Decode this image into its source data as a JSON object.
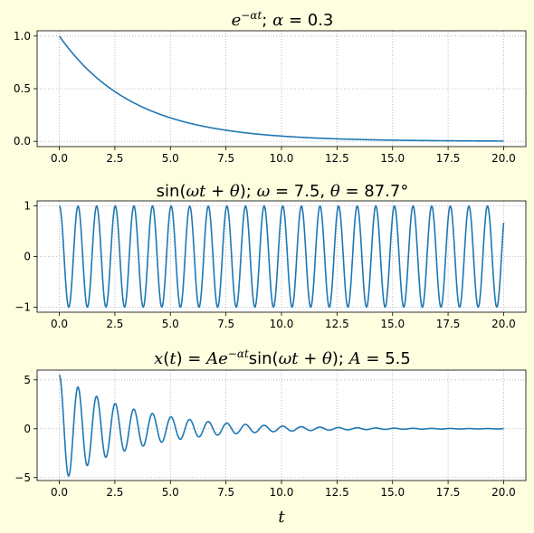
{
  "figure": {
    "background": "#ffffe0",
    "line_color": "#1f77b4",
    "xlabel": "t"
  },
  "chart_data": [
    {
      "type": "line",
      "title": "e^{−αt};   α = 0.3",
      "function": "exp",
      "params": {
        "alpha": 0.3
      },
      "x": {
        "start": 0,
        "end": 20,
        "samples": 1000
      },
      "xlim": [
        -1,
        21
      ],
      "ylim": [
        -0.05,
        1.05
      ],
      "xticks": [
        0,
        2.5,
        5,
        7.5,
        10,
        12.5,
        15,
        17.5,
        20
      ],
      "xtick_labels": [
        "0.0",
        "2.5",
        "5.0",
        "7.5",
        "10.0",
        "12.5",
        "15.0",
        "17.5",
        "20.0"
      ],
      "yticks": [
        0,
        0.5,
        1
      ],
      "ytick_labels": [
        "0.0",
        "0.5",
        "1.0"
      ],
      "grid": true
    },
    {
      "type": "line",
      "title": "sin(ωt + θ);   ω = 7.5, θ = 87.7°",
      "function": "sin",
      "params": {
        "omega": 7.5,
        "theta_deg": 87.7
      },
      "x": {
        "start": 0,
        "end": 20,
        "samples": 1000
      },
      "xlim": [
        -1,
        21
      ],
      "ylim": [
        -1.1,
        1.1
      ],
      "xticks": [
        0,
        2.5,
        5,
        7.5,
        10,
        12.5,
        15,
        17.5,
        20
      ],
      "xtick_labels": [
        "0.0",
        "2.5",
        "5.0",
        "7.5",
        "10.0",
        "12.5",
        "15.0",
        "17.5",
        "20.0"
      ],
      "yticks": [
        -1,
        0,
        1
      ],
      "ytick_labels": [
        "−1",
        "0",
        "1"
      ],
      "grid": true
    },
    {
      "type": "line",
      "title": "x(t) = Ae^{−αt}sin(ωt + θ);   A = 5.5",
      "function": "damped",
      "params": {
        "A": 5.5,
        "alpha": 0.3,
        "omega": 7.5,
        "theta_deg": 87.7
      },
      "x": {
        "start": 0,
        "end": 20,
        "samples": 1000
      },
      "xlim": [
        -1,
        21
      ],
      "ylim": [
        -5.3,
        6.0
      ],
      "xticks": [
        0,
        2.5,
        5,
        7.5,
        10,
        12.5,
        15,
        17.5,
        20
      ],
      "xtick_labels": [
        "0.0",
        "2.5",
        "5.0",
        "7.5",
        "10.0",
        "12.5",
        "15.0",
        "17.5",
        "20.0"
      ],
      "yticks": [
        -5,
        0,
        5
      ],
      "ytick_labels": [
        "−5",
        "0",
        "5"
      ],
      "grid": true
    }
  ]
}
